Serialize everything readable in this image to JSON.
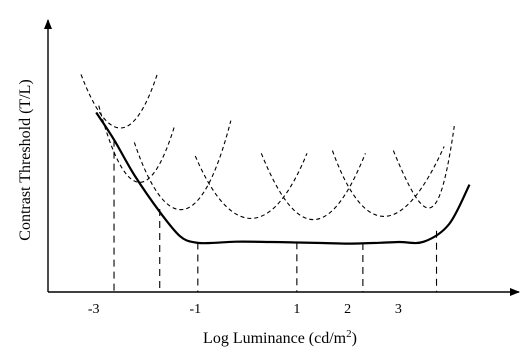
{
  "chart_data": {
    "type": "line",
    "title": "",
    "xlabel": "Log Luminance (cd/m",
    "xlabel_superscript": "2",
    "xlabel_suffix": ")",
    "ylabel": "Contrast Threshold (T/L)",
    "x_tick_labels": [
      {
        "label": "-3",
        "value": -3
      },
      {
        "label": "-1",
        "value": -1
      },
      {
        "label": "1",
        "value": 1
      },
      {
        "label": "2",
        "value": 2
      },
      {
        "label": "3",
        "value": 3
      }
    ],
    "xlim": [
      -3.9,
      5.0
    ],
    "ylim": [
      0.0,
      10.0
    ],
    "grid": false,
    "legend": "none",
    "envelope": {
      "style": "solid",
      "x": [
        -2.95,
        -2.6,
        -2.2,
        -1.7,
        -1.3,
        -1.0,
        -0.7,
        -0.2,
        0.5,
        1.0,
        1.5,
        2.0,
        2.5,
        3.0,
        3.5,
        4.0,
        4.4
      ],
      "y": [
        6.6,
        5.6,
        4.3,
        2.95,
        2.05,
        1.82,
        1.8,
        1.85,
        1.84,
        1.82,
        1.8,
        1.78,
        1.8,
        1.84,
        1.85,
        2.5,
        3.95
      ]
    },
    "channel_curves": [
      {
        "style": "dashed",
        "x": [
          -3.25,
          -2.75,
          -2.25,
          -1.75
        ],
        "y": [
          8.0,
          5.55,
          5.2,
          8.0
        ]
      },
      {
        "style": "dashed",
        "x": [
          -2.9,
          -2.4,
          -1.9,
          -1.4
        ],
        "y": [
          6.85,
          3.35,
          3.1,
          6.15
        ]
      },
      {
        "style": "dashed",
        "x": [
          -2.2,
          -1.6,
          -0.9,
          -0.3
        ],
        "y": [
          5.5,
          2.2,
          1.95,
          6.3
        ]
      },
      {
        "style": "dashed",
        "x": [
          -1.0,
          -0.3,
          0.5,
          1.2
        ],
        "y": [
          5.0,
          1.95,
          1.9,
          5.1
        ]
      },
      {
        "style": "dashed",
        "x": [
          0.3,
          1.0,
          1.65,
          2.35
        ],
        "y": [
          5.1,
          1.85,
          1.85,
          5.1
        ]
      },
      {
        "style": "dashed",
        "x": [
          1.7,
          2.35,
          3.1,
          3.9
        ],
        "y": [
          5.2,
          1.85,
          2.05,
          5.35
        ]
      },
      {
        "style": "dashed",
        "x": [
          2.9,
          3.55,
          3.8,
          4.1
        ],
        "y": [
          5.2,
          2.25,
          2.25,
          6.1
        ]
      }
    ],
    "drop_lines": [
      {
        "x": -2.6,
        "y": 5.6
      },
      {
        "x": -1.7,
        "y": 3.05
      },
      {
        "x": -0.95,
        "y": 1.82
      },
      {
        "x": 1.0,
        "y": 1.83
      },
      {
        "x": 2.3,
        "y": 1.8
      },
      {
        "x": 3.75,
        "y": 2.25
      }
    ]
  }
}
